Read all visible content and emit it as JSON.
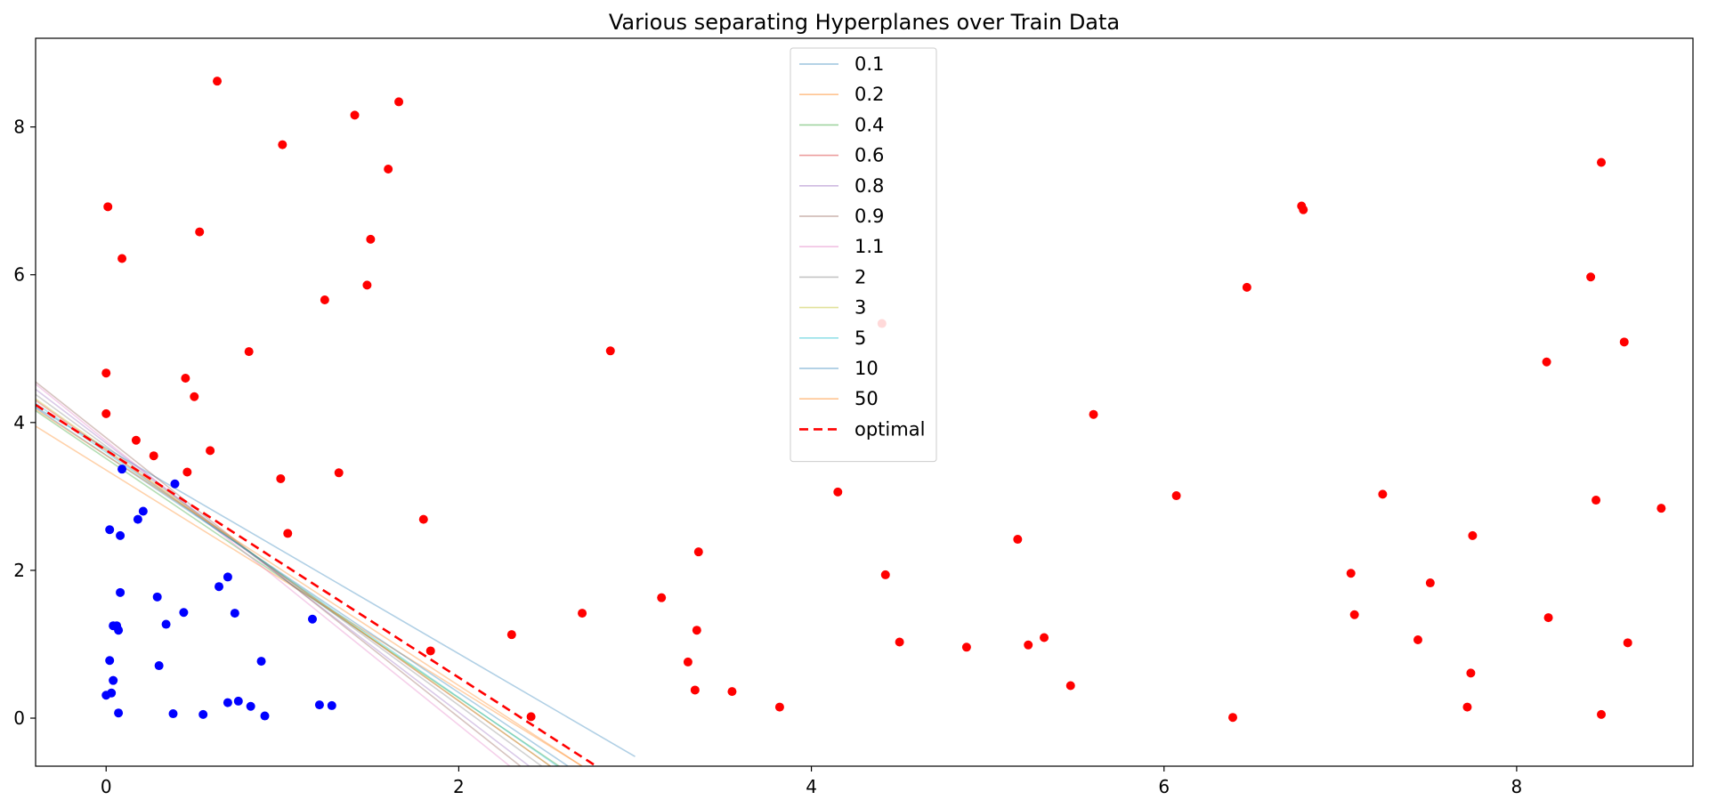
{
  "chart_data": {
    "type": "scatter",
    "title": "Various separating Hyperplanes over Train Data",
    "xlabel": "",
    "ylabel": "",
    "xlim": [
      -0.4,
      9.0
    ],
    "ylim": [
      -0.65,
      9.2
    ],
    "xticks": [
      0,
      2,
      4,
      6,
      8
    ],
    "yticks": [
      0,
      2,
      4,
      6,
      8
    ],
    "grid": false,
    "legend_position": "top-center",
    "point_series": [
      {
        "name": "blue",
        "color": "#0000ff",
        "points": [
          [
            0.09,
            3.37
          ],
          [
            0.02,
            2.55
          ],
          [
            0.08,
            2.47
          ],
          [
            0.18,
            2.69
          ],
          [
            0.21,
            2.8
          ],
          [
            0.39,
            3.17
          ],
          [
            0.08,
            1.7
          ],
          [
            0.29,
            1.64
          ],
          [
            0.04,
            1.25
          ],
          [
            0.06,
            1.25
          ],
          [
            0.07,
            1.19
          ],
          [
            0.34,
            1.27
          ],
          [
            0.44,
            1.43
          ],
          [
            0.02,
            0.78
          ],
          [
            0.3,
            0.71
          ],
          [
            0.04,
            0.51
          ],
          [
            0.0,
            0.31
          ],
          [
            0.03,
            0.34
          ],
          [
            0.07,
            0.07
          ],
          [
            0.38,
            0.06
          ],
          [
            0.55,
            0.05
          ],
          [
            0.64,
            1.78
          ],
          [
            0.69,
            1.91
          ],
          [
            0.73,
            1.42
          ],
          [
            0.88,
            0.77
          ],
          [
            0.69,
            0.21
          ],
          [
            0.75,
            0.23
          ],
          [
            0.82,
            0.16
          ],
          [
            0.9,
            0.03
          ],
          [
            1.17,
            1.34
          ],
          [
            1.21,
            0.18
          ],
          [
            1.28,
            0.17
          ]
        ]
      },
      {
        "name": "red",
        "color": "#ff0000",
        "points": [
          [
            0.63,
            8.62
          ],
          [
            1.41,
            8.16
          ],
          [
            1.66,
            8.34
          ],
          [
            1.0,
            7.76
          ],
          [
            1.6,
            7.43
          ],
          [
            0.01,
            6.92
          ],
          [
            0.09,
            6.22
          ],
          [
            0.53,
            6.58
          ],
          [
            1.5,
            6.48
          ],
          [
            1.24,
            5.66
          ],
          [
            1.48,
            5.86
          ],
          [
            0.81,
            4.96
          ],
          [
            0.0,
            4.67
          ],
          [
            0.45,
            4.6
          ],
          [
            0.5,
            4.35
          ],
          [
            0.0,
            4.12
          ],
          [
            0.17,
            3.76
          ],
          [
            0.27,
            3.55
          ],
          [
            0.59,
            3.62
          ],
          [
            0.46,
            3.33
          ],
          [
            0.99,
            3.24
          ],
          [
            1.32,
            3.32
          ],
          [
            1.03,
            2.5
          ],
          [
            1.8,
            2.69
          ],
          [
            1.84,
            0.91
          ],
          [
            2.3,
            1.13
          ],
          [
            2.41,
            0.02
          ],
          [
            2.7,
            1.42
          ],
          [
            2.86,
            4.97
          ],
          [
            3.15,
            1.63
          ],
          [
            3.36,
            2.25
          ],
          [
            3.35,
            1.19
          ],
          [
            3.3,
            0.76
          ],
          [
            3.34,
            0.38
          ],
          [
            3.55,
            0.36
          ],
          [
            3.82,
            0.15
          ],
          [
            4.15,
            3.06
          ],
          [
            4.4,
            5.34
          ],
          [
            4.42,
            1.94
          ],
          [
            4.5,
            1.03
          ],
          [
            4.88,
            0.96
          ],
          [
            5.17,
            2.42
          ],
          [
            5.23,
            0.99
          ],
          [
            5.32,
            1.09
          ],
          [
            5.47,
            0.44
          ],
          [
            5.6,
            4.11
          ],
          [
            6.07,
            3.01
          ],
          [
            6.39,
            0.01
          ],
          [
            6.47,
            5.83
          ],
          [
            6.78,
            6.93
          ],
          [
            6.79,
            6.88
          ],
          [
            7.06,
            1.96
          ],
          [
            7.08,
            1.4
          ],
          [
            7.24,
            3.03
          ],
          [
            7.44,
            1.06
          ],
          [
            7.51,
            1.83
          ],
          [
            7.72,
            0.15
          ],
          [
            7.74,
            0.61
          ],
          [
            7.75,
            2.47
          ],
          [
            8.17,
            4.82
          ],
          [
            8.18,
            1.36
          ],
          [
            8.42,
            5.97
          ],
          [
            8.45,
            2.95
          ],
          [
            8.48,
            0.05
          ],
          [
            8.48,
            7.52
          ],
          [
            8.61,
            5.09
          ],
          [
            8.63,
            1.02
          ],
          [
            8.82,
            2.84
          ]
        ]
      }
    ],
    "line_series": [
      {
        "name": "0.1",
        "color": "#1f77b4",
        "style": "solid",
        "x": [
          -0.4,
          3.0
        ],
        "y": [
          4.21,
          -0.52
        ]
      },
      {
        "name": "0.2",
        "color": "#ff7f0e",
        "style": "solid",
        "x": [
          -0.4,
          2.7
        ],
        "y": [
          3.95,
          -0.65
        ]
      },
      {
        "name": "0.4",
        "color": "#2ca02c",
        "style": "solid",
        "x": [
          -0.4,
          2.57
        ],
        "y": [
          4.16,
          -0.65
        ]
      },
      {
        "name": "0.6",
        "color": "#d62728",
        "style": "solid",
        "x": [
          -0.4,
          2.52
        ],
        "y": [
          4.3,
          -0.65
        ]
      },
      {
        "name": "0.8",
        "color": "#9467bd",
        "style": "solid",
        "x": [
          -0.4,
          2.4
        ],
        "y": [
          4.45,
          -0.65
        ]
      },
      {
        "name": "0.9",
        "color": "#8c564b",
        "style": "solid",
        "x": [
          -0.4,
          2.35
        ],
        "y": [
          4.55,
          -0.65
        ]
      },
      {
        "name": "1.1",
        "color": "#e377c2",
        "style": "solid",
        "x": [
          -0.4,
          2.29
        ],
        "y": [
          4.52,
          -0.65
        ]
      },
      {
        "name": "2",
        "color": "#7f7f7f",
        "style": "solid",
        "x": [
          -0.4,
          2.47
        ],
        "y": [
          4.38,
          -0.65
        ]
      },
      {
        "name": "3",
        "color": "#bcbd22",
        "style": "solid",
        "x": [
          -0.4,
          2.52
        ],
        "y": [
          4.32,
          -0.65
        ]
      },
      {
        "name": "5",
        "color": "#17becf",
        "style": "solid",
        "x": [
          -0.4,
          2.56
        ],
        "y": [
          4.26,
          -0.65
        ]
      },
      {
        "name": "10",
        "color": "#1f77b4",
        "style": "solid",
        "x": [
          -0.4,
          2.62
        ],
        "y": [
          4.2,
          -0.65
        ]
      },
      {
        "name": "50",
        "color": "#ff7f0e",
        "style": "solid",
        "x": [
          -0.4,
          2.7
        ],
        "y": [
          4.18,
          -0.65
        ]
      },
      {
        "name": "optimal",
        "color": "#ff0000",
        "style": "dashed",
        "x": [
          -0.4,
          2.78
        ],
        "y": [
          4.24,
          -0.65
        ]
      }
    ]
  }
}
